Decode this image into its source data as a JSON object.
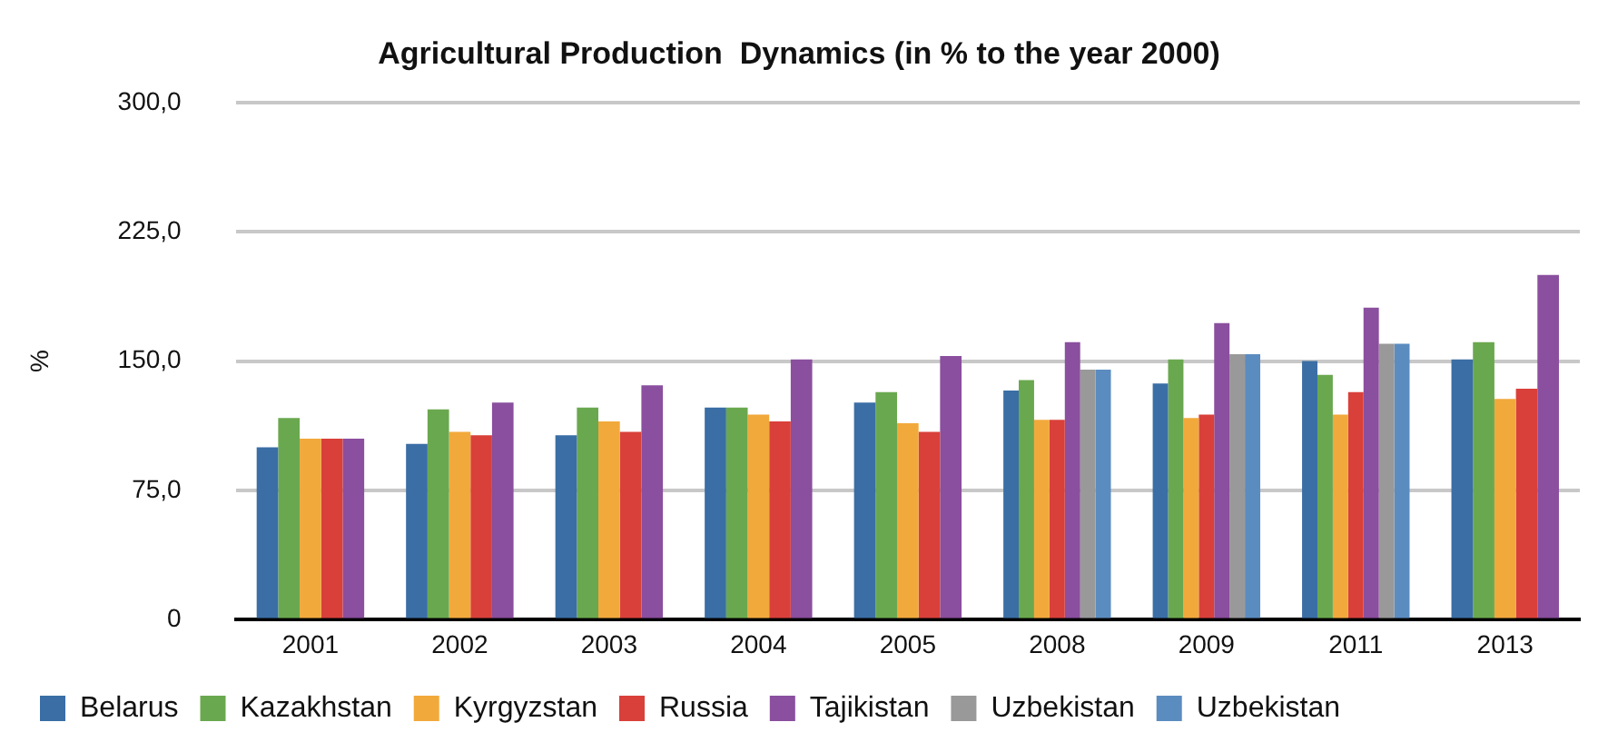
{
  "chart_data": {
    "type": "bar",
    "title": "Agricultural Production  Dynamics (in % to the year 2000)",
    "ylabel": "%",
    "categories": [
      "2001",
      "2002",
      "2003",
      "2004",
      "2005",
      "2008",
      "2009",
      "2011",
      "2013"
    ],
    "series": [
      {
        "name": "Belarus",
        "color": "#3a6ea5",
        "values": [
          100,
          102,
          107,
          123,
          126,
          133,
          137,
          150,
          151
        ]
      },
      {
        "name": "Kazakhstan",
        "color": "#6aa84f",
        "values": [
          117,
          122,
          123,
          123,
          132,
          139,
          151,
          142,
          161
        ]
      },
      {
        "name": "Kyrgyzstan",
        "color": "#f2a93b",
        "values": [
          105,
          109,
          115,
          119,
          114,
          116,
          117,
          119,
          128
        ]
      },
      {
        "name": "Russia",
        "color": "#d9403a",
        "values": [
          105,
          107,
          109,
          115,
          109,
          116,
          119,
          132,
          134
        ]
      },
      {
        "name": "Tajikistan",
        "color": "#8a4f9e",
        "values": [
          105,
          126,
          136,
          151,
          153,
          161,
          172,
          181,
          200
        ]
      },
      {
        "name": "Uzbekistan",
        "color": "#999999",
        "values": [
          null,
          null,
          null,
          null,
          null,
          145,
          154,
          160,
          null
        ]
      },
      {
        "name": "Uzbekistan",
        "color": "#5b8cc0",
        "values": [
          null,
          null,
          null,
          null,
          null,
          145,
          154,
          160,
          null
        ]
      }
    ],
    "ylim": [
      0,
      300
    ],
    "yticks": [
      {
        "value": 0,
        "label": "0"
      },
      {
        "value": 75,
        "label": "75,0"
      },
      {
        "value": 150,
        "label": "150,0"
      },
      {
        "value": 225,
        "label": "225,0"
      },
      {
        "value": 300,
        "label": "300,0"
      }
    ],
    "grid": "y",
    "legend": "bottom"
  }
}
